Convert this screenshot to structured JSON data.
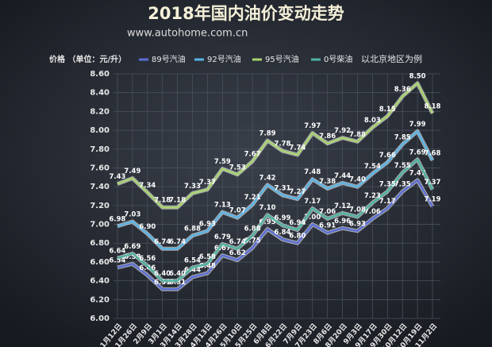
{
  "chart_data": {
    "type": "line",
    "title": "2018年国内油价变动走势",
    "subtitle": "www.autohome.com.cn",
    "y_label": "价格 （单位：元/升）",
    "note": "以北京地区为例",
    "categories": [
      "1月12日",
      "1月26日",
      "2月9日",
      "3月1日",
      "3月14日",
      "3月28日",
      "4月13日",
      "4月26日",
      "5月10日",
      "5月25日",
      "6月8日",
      "6月22日",
      "7月9日",
      "7月23日",
      "8月6日",
      "8月20日",
      "9月3日",
      "9月17日",
      "9月30日",
      "10月12日",
      "10月19日",
      "11月2日"
    ],
    "series": [
      {
        "name": "89号汽油",
        "color": "#5b6fd6",
        "values": [
          6.54,
          6.58,
          6.46,
          6.31,
          6.31,
          6.44,
          6.48,
          6.67,
          6.62,
          6.75,
          6.95,
          6.84,
          6.8,
          7.0,
          6.91,
          6.96,
          6.93,
          7.06,
          7.17,
          7.35,
          7.47,
          7.19
        ],
        "value_labels": [
          "6.54",
          "6.58",
          "6.46",
          "6.31",
          "6.31",
          "6.44",
          "6.48",
          "6.67",
          "6.62",
          "6.75",
          "6.95",
          "6.84",
          "6.80",
          "7.00",
          "6.91",
          "6.96",
          "6.93",
          "7.06",
          "7.17",
          "7.35",
          "7.47",
          "7.19"
        ]
      },
      {
        "name": "92号汽油",
        "color": "#5ab4e5",
        "values": [
          6.98,
          7.03,
          6.9,
          6.74,
          6.74,
          6.88,
          6.93,
          7.13,
          7.07,
          7.21,
          7.42,
          7.31,
          7.27,
          7.48,
          7.38,
          7.44,
          7.4,
          7.54,
          7.66,
          7.85,
          7.99,
          7.68
        ],
        "value_labels": [
          "6.98",
          "7.03",
          "6.90",
          "6.74",
          "6.74",
          "6.88",
          "6.93",
          "7.13",
          "7.07",
          "7.21",
          "7.42",
          "7.31",
          "7.27",
          "7.48",
          "7.38",
          "7.44",
          "7.40",
          "7.54",
          "7.66",
          "7.85",
          "7.99",
          "7.68"
        ]
      },
      {
        "name": "95号汽油",
        "color": "#a9d46e",
        "values": [
          7.43,
          7.49,
          7.34,
          7.18,
          7.18,
          7.33,
          7.37,
          7.59,
          7.53,
          7.67,
          7.89,
          7.78,
          7.74,
          7.97,
          7.86,
          7.92,
          7.88,
          8.03,
          8.15,
          8.36,
          8.5,
          8.18
        ],
        "value_labels": [
          "7.43",
          "7.49",
          "7.34",
          "7.18",
          "7.18",
          "7.33",
          "7.37",
          "7.59",
          "7.53",
          "7.67",
          "7.89",
          "7.78",
          "7.74",
          "7.97",
          "7.86",
          "7.92",
          "7.88",
          "8.03",
          "8.15",
          "8.36",
          "8.50",
          "8.18"
        ]
      },
      {
        "name": "0号柴油",
        "color": "#4fb3a0",
        "values": [
          6.64,
          6.69,
          6.56,
          6.4,
          6.4,
          6.54,
          6.58,
          6.79,
          6.74,
          6.88,
          7.1,
          6.99,
          6.94,
          7.17,
          7.06,
          7.12,
          7.08,
          7.23,
          7.35,
          7.55,
          7.69,
          7.37
        ],
        "value_labels": [
          "6.64",
          "6.69",
          "6.56",
          "6.40",
          "6.40",
          "6.54",
          "6.58",
          "6.79",
          "6.74",
          "6.88",
          "7.10",
          "6.99",
          "6.94",
          "7.17",
          "7.06",
          "7.12",
          "7.08",
          "7.23",
          "7.35",
          "7.55",
          "7.69",
          "7.37"
        ]
      }
    ],
    "ylim": [
      6.0,
      8.6
    ],
    "yticks": [
      {
        "value": 6.0,
        "label": "6.00"
      },
      {
        "value": 6.2,
        "label": "6.20"
      },
      {
        "value": 6.4,
        "label": "6.40"
      },
      {
        "value": 6.6,
        "label": "6.60"
      },
      {
        "value": 6.8,
        "label": "6.80"
      },
      {
        "value": 7.0,
        "label": "7.00"
      },
      {
        "value": 7.2,
        "label": "7.20"
      },
      {
        "value": 7.4,
        "label": "7.40"
      },
      {
        "value": 7.6,
        "label": "7.60"
      },
      {
        "value": 7.8,
        "label": "7.80"
      },
      {
        "value": 8.0,
        "label": "8.00"
      },
      {
        "value": 8.2,
        "label": "8.20"
      },
      {
        "value": 8.4,
        "label": "8.40"
      },
      {
        "value": 8.6,
        "label": "8.60"
      }
    ],
    "grid": true
  }
}
